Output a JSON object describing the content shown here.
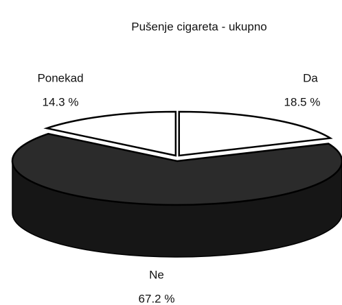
{
  "chart_data": {
    "type": "pie3d",
    "title": "Pušenje cigareta - ukupno",
    "categories": [
      "Da",
      "Ne",
      "Ponekad"
    ],
    "values": [
      18.5,
      67.2,
      14.3
    ],
    "value_labels": [
      "18.5 %",
      "67.2 %",
      "14.3 %"
    ],
    "colors": [
      "#ffffff",
      "#2b2b2b",
      "#ffffff"
    ]
  }
}
